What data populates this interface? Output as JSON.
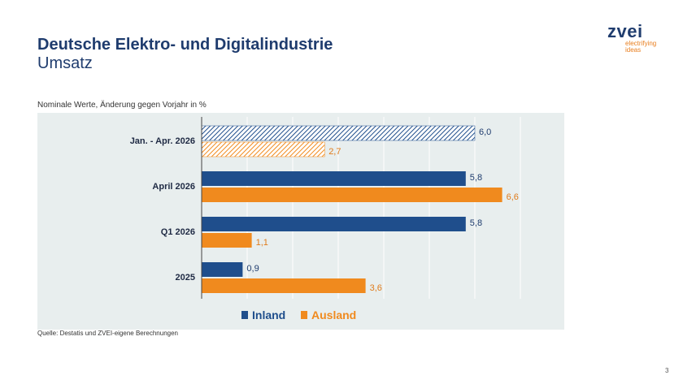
{
  "header": {
    "title": "Deutsche Elektro- und Digitalindustrie",
    "subtitle": "Umsatz"
  },
  "logo": {
    "word": "zvei",
    "tagline_1": "electrifying",
    "tagline_2": "ideas"
  },
  "note": "Nominale Werte, Änderung gegen Vorjahr in %",
  "source": "Quelle: Destatis und ZVEI-eigene Berechnungen",
  "page_number": "3",
  "colors": {
    "inland": "#1f4e8c",
    "ausland": "#f08a1e",
    "inland_label": "#1f3c6e",
    "ausland_label": "#e07b1a",
    "plot_bg": "#e8eeee"
  },
  "chart_data": {
    "type": "bar",
    "orientation": "horizontal",
    "categories": [
      "Jan. - Apr. 2026",
      "April 2026",
      "Q1 2026",
      "2025"
    ],
    "series": [
      {
        "name": "Inland",
        "values": [
          6.0,
          5.8,
          5.8,
          0.9
        ],
        "labels": [
          "6,0",
          "5,8",
          "5,8",
          "0,9"
        ]
      },
      {
        "name": "Ausland",
        "values": [
          2.7,
          6.6,
          1.1,
          3.6
        ],
        "labels": [
          "2,7",
          "6,6",
          "1,1",
          "3,6"
        ]
      }
    ],
    "hatched_categories": [
      "Jan. - Apr. 2026"
    ],
    "xlim": [
      0,
      8
    ],
    "grid": true,
    "legend": "bottom"
  }
}
